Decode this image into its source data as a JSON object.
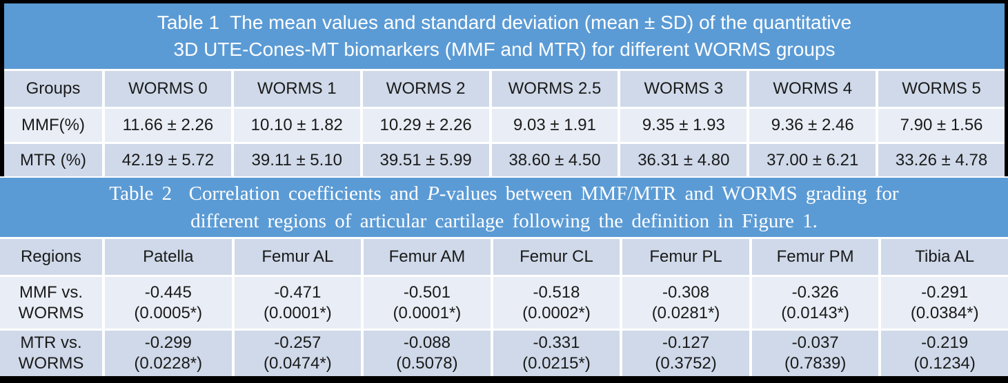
{
  "colors": {
    "band_blue": "#5b9bd5",
    "row_shaded": "#cfd9e9",
    "row_light": "#e9edf5",
    "frame_black": "#000000"
  },
  "table1": {
    "title_line1": "Table 1  The mean values and standard deviation (mean ± SD) of the quantitative",
    "title_line2": "3D UTE-Cones-MT biomarkers (MMF and MTR) for different WORMS groups",
    "header": [
      "Groups",
      "WORMS 0",
      "WORMS 1",
      "WORMS 2",
      "WORMS 2.5",
      "WORMS 3",
      "WORMS 4",
      "WORMS 5"
    ],
    "row_mmf": {
      "label": "MMF(%)",
      "values": [
        "11.66 ± 2.26",
        "10.10 ± 1.82",
        "10.29 ± 2.26",
        "9.03 ± 1.91",
        "9.35 ± 1.93",
        "9.36 ± 2.46",
        "7.90 ± 1.56"
      ]
    },
    "row_mtr": {
      "label": "MTR (%)",
      "values": [
        "42.19 ± 5.72",
        "39.11 ± 5.10",
        "39.51 ± 5.99",
        "38.60 ± 4.50",
        "36.31 ± 4.80",
        "37.00 ± 6.21",
        "33.26 ± 4.78"
      ]
    }
  },
  "table2": {
    "title_pre": "Table 2  Correlation coefficients and ",
    "title_italic": "P",
    "title_post": "-values between MMF/MTR and WORMS grading for",
    "title_line2": "different regions of articular cartilage following the definition in Figure 1.",
    "header": [
      "Regions",
      "Patella",
      "Femur AL",
      "Femur AM",
      "Femur CL",
      "Femur PL",
      "Femur PM",
      "Tibia AL"
    ],
    "row_mmf": {
      "label_line1": "MMF vs.",
      "label_line2": "WORMS",
      "values": [
        {
          "r": "-0.445",
          "p": "(0.0005*)"
        },
        {
          "r": "-0.471",
          "p": "(0.0001*)"
        },
        {
          "r": "-0.501",
          "p": "(0.0001*)"
        },
        {
          "r": "-0.518",
          "p": "(0.0002*)"
        },
        {
          "r": "-0.308",
          "p": "(0.0281*)"
        },
        {
          "r": "-0.326",
          "p": "(0.0143*)"
        },
        {
          "r": "-0.291",
          "p": "(0.0384*)"
        }
      ]
    },
    "row_mtr": {
      "label_line1": "MTR vs.",
      "label_line2": "WORMS",
      "values": [
        {
          "r": "-0.299",
          "p": "(0.0228*)"
        },
        {
          "r": "-0.257",
          "p": "(0.0474*)"
        },
        {
          "r": "-0.088",
          "p": "(0.5078)"
        },
        {
          "r": "-0.331",
          "p": "(0.0215*)"
        },
        {
          "r": "-0.127",
          "p": "(0.3752)"
        },
        {
          "r": "-0.037",
          "p": "(0.7839)"
        },
        {
          "r": "-0.219",
          "p": "(0.1234)"
        }
      ]
    }
  }
}
